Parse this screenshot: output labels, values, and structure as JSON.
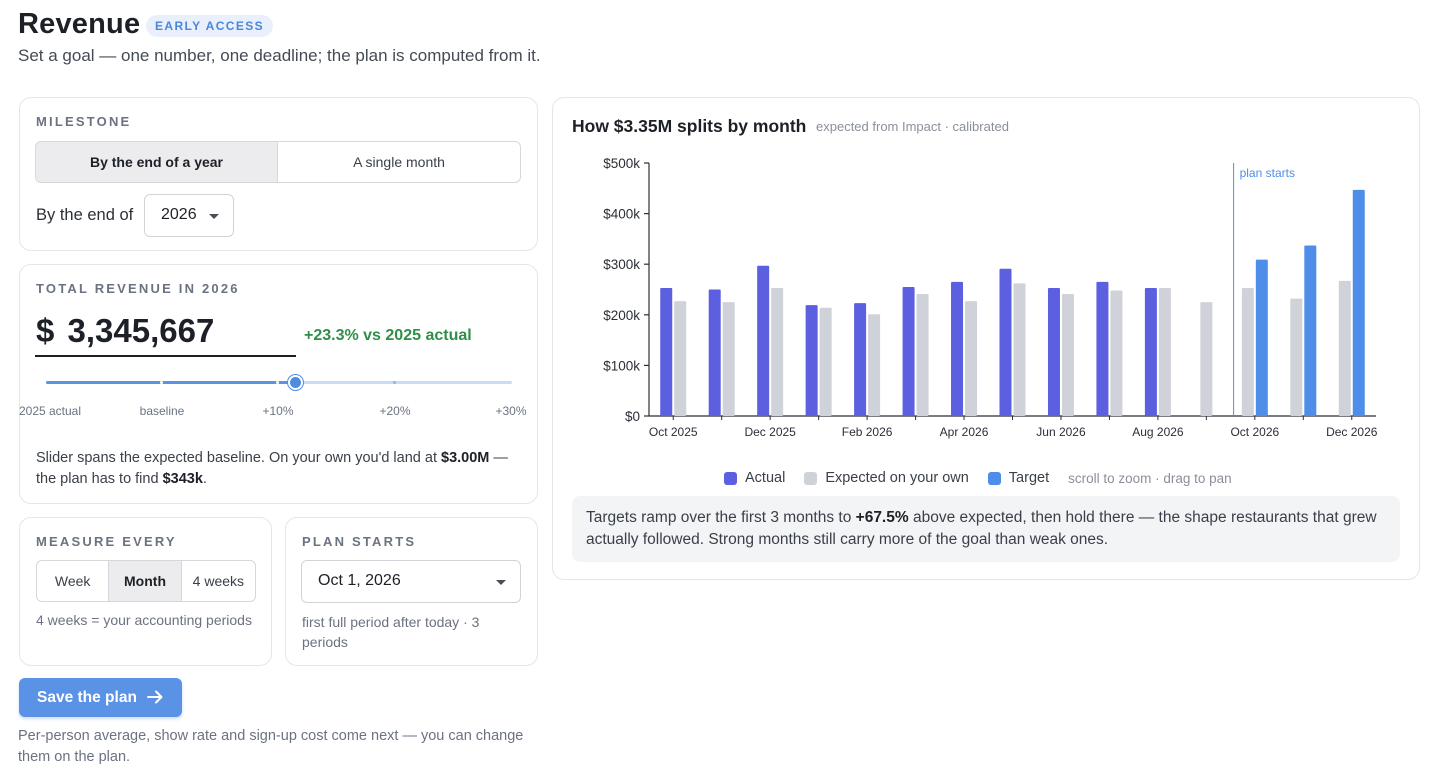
{
  "header": {
    "title": "Revenue",
    "badge": "EARLY ACCESS",
    "subtitle": "Set a goal — one number, one deadline; the plan is computed from it."
  },
  "milestone": {
    "label": "MILESTONE",
    "options": [
      "By the end of a year",
      "A single month"
    ],
    "selected_index": 0,
    "by_end_label": "By the end of",
    "year_value": "2026"
  },
  "total": {
    "label": "TOTAL REVENUE IN 2026",
    "currency": "$",
    "amount": "3,345,667",
    "delta": "+23.3% vs 2025 actual",
    "slider": {
      "ticks": [
        "2025 actual",
        "baseline",
        "+10%",
        "+20%",
        "+30%"
      ],
      "value_fraction": 0.533
    },
    "note_prefix": "Slider spans the expected baseline. On your own you'd land at ",
    "note_own": "$3.00M",
    "note_middle": " — the plan has to find ",
    "note_find": "$343k",
    "note_suffix": "."
  },
  "measure": {
    "label": "MEASURE EVERY",
    "options": [
      "Week",
      "Month",
      "4 weeks"
    ],
    "selected_index": 1,
    "hint": "4 weeks = your accounting periods"
  },
  "plan_starts": {
    "label": "PLAN STARTS",
    "value": "Oct 1, 2026",
    "hint": "first full period after today · 3 periods"
  },
  "save": {
    "label": "Save the plan",
    "footnote": "Per-person average, show rate and sign-up cost come next — you can change them on the plan."
  },
  "chart_panel": {
    "title": "How $3.35M splits by month",
    "subtitle": "expected from Impact · calibrated",
    "legend": [
      "Actual",
      "Expected on your own",
      "Target"
    ],
    "hint": "scroll to zoom · drag to pan",
    "callout_prefix": "Targets ramp over the first 3 months to ",
    "callout_bold": "+67.5%",
    "callout_suffix": " above expected, then hold there — the shape restaurants that grew actually followed. Strong months still carry more of the goal than weak ones."
  },
  "colors": {
    "actual": "#5b5fe0",
    "expected": "#cfd2d9",
    "target": "#4f8ee8",
    "accent": "#5a92e6",
    "positive": "#2f8f46"
  },
  "chart_data": {
    "type": "bar",
    "categories": [
      "Oct 2025",
      "Nov 2025",
      "Dec 2025",
      "Jan 2026",
      "Feb 2026",
      "Mar 2026",
      "Apr 2026",
      "May 2026",
      "Jun 2026",
      "Jul 2026",
      "Aug 2026",
      "Sep 2026",
      "Oct 2026",
      "Nov 2026",
      "Dec 2026"
    ],
    "x_tick_labels": [
      "Oct 2025",
      "Dec 2025",
      "Feb 2026",
      "Apr 2026",
      "Jun 2026",
      "Aug 2026",
      "Oct 2026",
      "Dec 2026"
    ],
    "series": [
      {
        "name": "Actual",
        "values": [
          253000,
          250000,
          297000,
          219000,
          223000,
          255000,
          265000,
          291000,
          253000,
          265000,
          253000,
          null,
          null,
          null,
          null
        ]
      },
      {
        "name": "Expected on your own",
        "values": [
          227000,
          225000,
          253000,
          214000,
          201000,
          241000,
          227000,
          262000,
          241000,
          248000,
          253000,
          225000,
          253000,
          232000,
          267000
        ]
      },
      {
        "name": "Target",
        "values": [
          null,
          null,
          null,
          null,
          null,
          null,
          null,
          null,
          null,
          null,
          null,
          null,
          309000,
          337000,
          447000
        ]
      }
    ],
    "y_ticks": [
      "$0",
      "$100k",
      "$200k",
      "$300k",
      "$400k",
      "$500k"
    ],
    "ylim": [
      0,
      500000
    ],
    "annotations": [
      {
        "text": "plan starts",
        "at": "Oct 2026"
      }
    ],
    "legend_position": "bottom",
    "grid": false
  }
}
